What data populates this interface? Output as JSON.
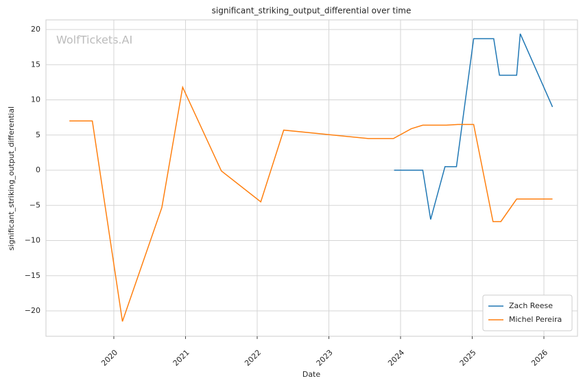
{
  "chart_data": {
    "type": "line",
    "title": "significant_striking_output_differential over time",
    "xlabel": "Date",
    "ylabel": "significant_striking_output_differential",
    "watermark": "WolfTickets.AI",
    "xlim": [
      2019.053,
      2026.469
    ],
    "xticks": [
      2020,
      2021,
      2022,
      2023,
      2024,
      2025,
      2026
    ],
    "ylim": [
      -23.61,
      21.37
    ],
    "yticks": [
      {
        "value": -20,
        "label": "−20"
      },
      {
        "value": -15,
        "label": "−15"
      },
      {
        "value": -10,
        "label": "−10"
      },
      {
        "value": -5,
        "label": "−5"
      },
      0,
      5,
      10,
      15,
      20
    ],
    "grid": true,
    "legend": "lower right",
    "series": [
      {
        "name": "Zach Reese",
        "color": "#1f77b4",
        "x": [
          2023.91,
          2024.31,
          2024.42,
          2024.62,
          2024.78,
          2025.02,
          2025.3,
          2025.38,
          2025.62,
          2025.67,
          2026.12
        ],
        "values": [
          0,
          0,
          -7,
          0.5,
          0.5,
          18.7,
          18.7,
          13.5,
          13.5,
          19.4,
          9
        ]
      },
      {
        "name": "Michel Pereira",
        "color": "#ff7f0e",
        "x": [
          2019.38,
          2019.7,
          2020.12,
          2020.67,
          2020.96,
          2021.5,
          2022.05,
          2022.37,
          2023.55,
          2023.9,
          2024.15,
          2024.31,
          2024.64,
          2024.8,
          2025.02,
          2025.29,
          2025.4,
          2025.62,
          2026.12
        ],
        "values": [
          7,
          7,
          -21.5,
          -5.3,
          11.8,
          -0.1,
          -4.5,
          5.7,
          4.5,
          4.5,
          5.9,
          6.4,
          6.4,
          6.5,
          6.5,
          -7.3,
          -7.3,
          -4.1,
          -4.1
        ]
      }
    ]
  }
}
